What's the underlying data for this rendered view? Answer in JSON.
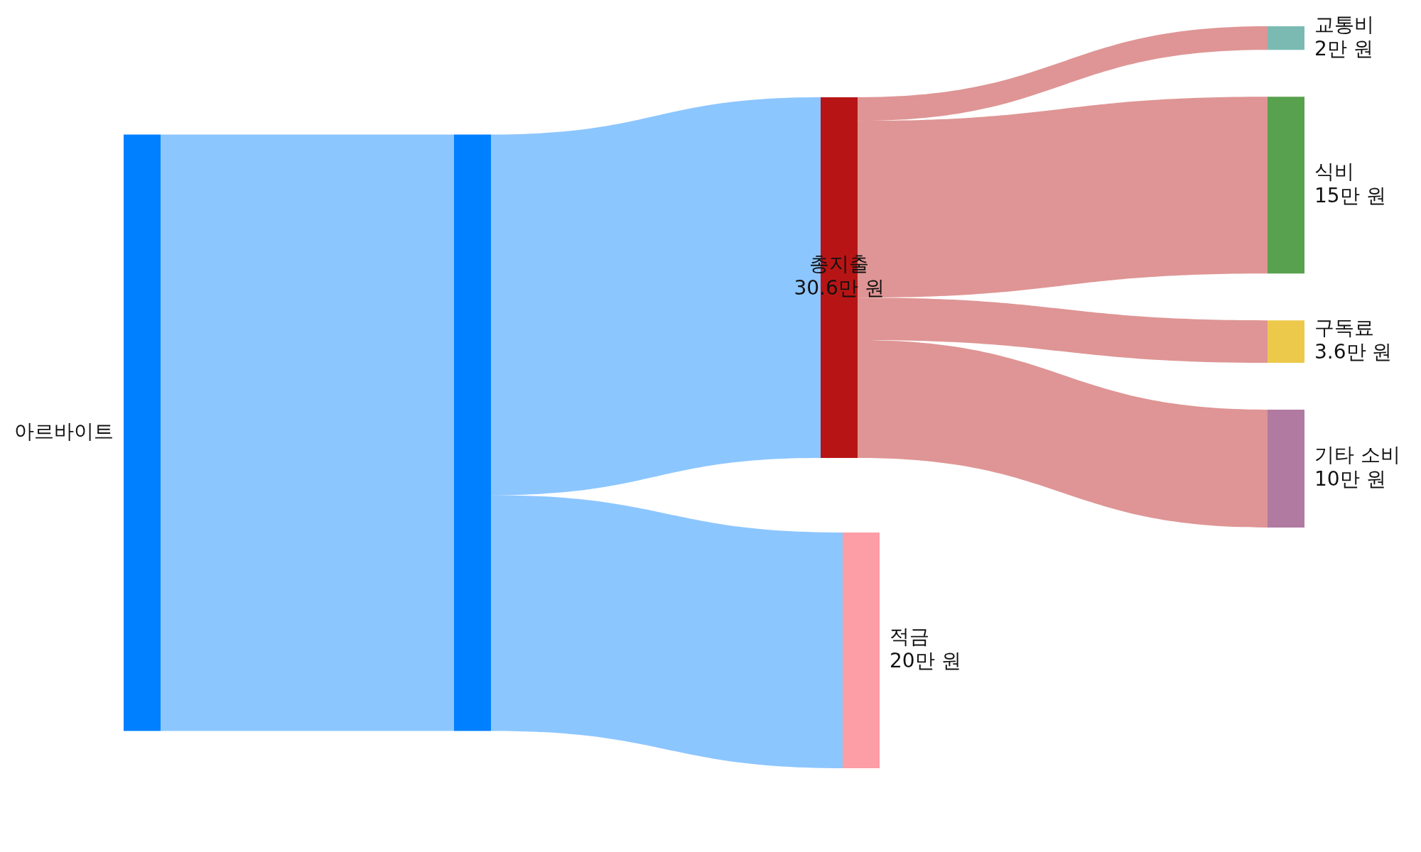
{
  "chart_data": {
    "type": "other",
    "categories": [
      "아르바이트",
      null,
      "총지출",
      "적금",
      "교통비",
      "식비",
      "구독료",
      "기타 소비"
    ],
    "values": [
      null,
      null,
      30.6,
      20,
      2,
      15,
      3.6,
      10
    ],
    "value_labels": [
      null,
      null,
      "30.6만 원",
      "20만 원",
      "2만 원",
      "15만 원",
      "3.6만 원",
      "10만 원"
    ],
    "colors": [
      "#0080ff",
      "#0080ff",
      "#b71515",
      "#fd9da6",
      "#7bbab3",
      "#58a14e",
      "#edc94b",
      "#b07aa1"
    ]
  }
}
